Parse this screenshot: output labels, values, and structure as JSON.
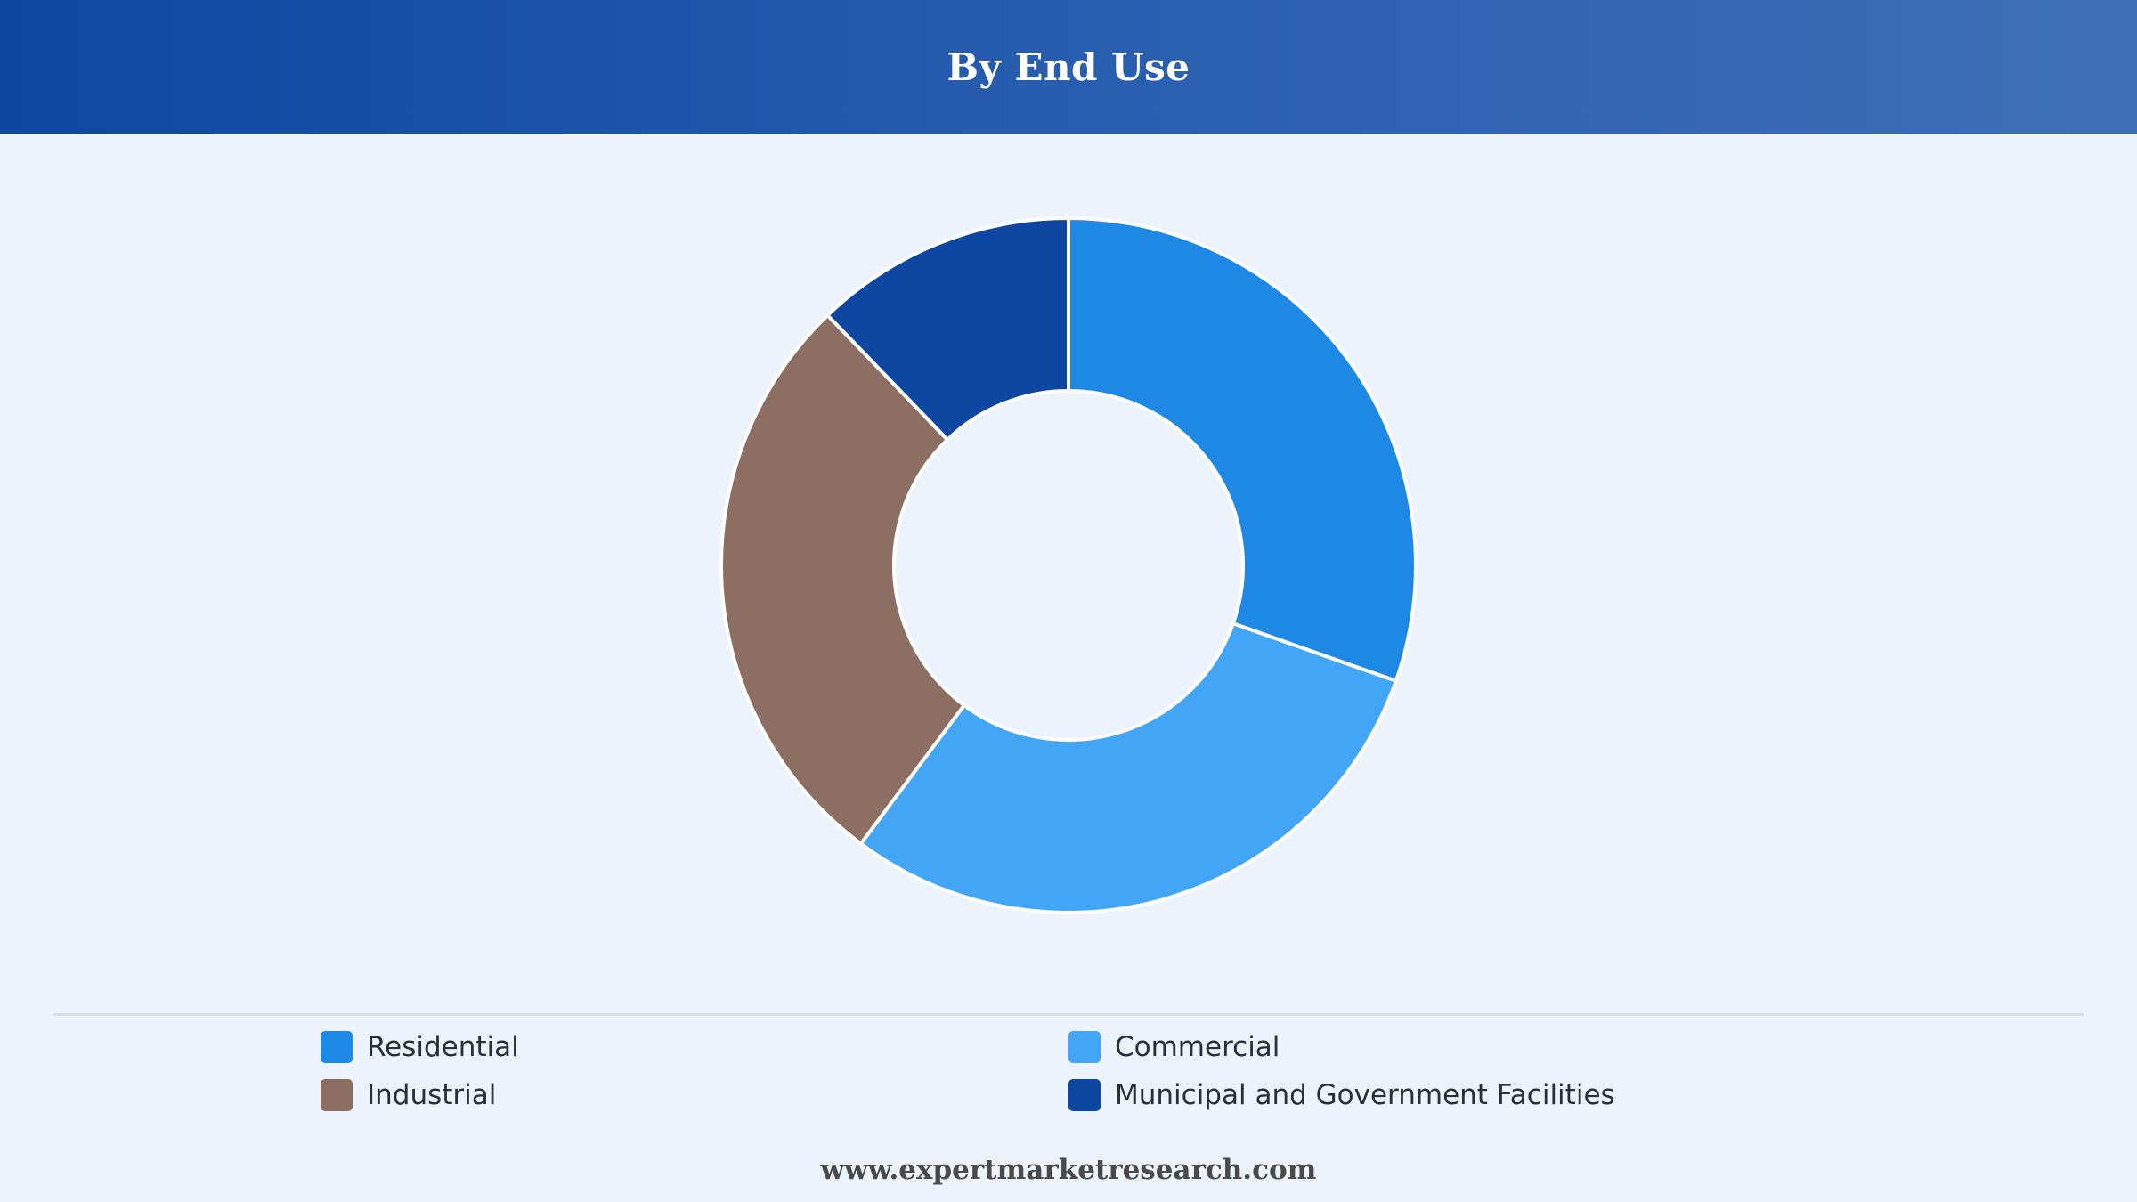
{
  "header": {
    "title": "By End Use"
  },
  "chart_data": {
    "type": "pie",
    "variant": "donut",
    "title": "By End Use",
    "categories": [
      "Residential",
      "Commercial",
      "Industrial",
      "Municipal and Government Facilities"
    ],
    "values": [
      30.4,
      29.8,
      27.6,
      12.2
    ],
    "colors": [
      "#1e88e5",
      "#42a5f5",
      "#8d6e63",
      "#0d47a1"
    ],
    "legend_position": "bottom"
  },
  "legend": {
    "items": [
      {
        "label": "Residential",
        "color": "#1e88e5"
      },
      {
        "label": "Commercial",
        "color": "#42a5f5"
      },
      {
        "label": "Industrial",
        "color": "#8d6e63"
      },
      {
        "label": "Municipal and Government Facilities",
        "color": "#0d47a1"
      }
    ]
  },
  "footer": {
    "text": "www.expertmarketresearch.com"
  }
}
